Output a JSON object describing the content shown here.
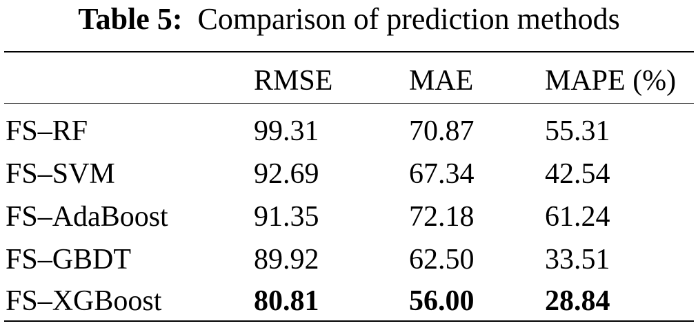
{
  "caption": {
    "label": "Table 5:",
    "text": "Comparison of prediction methods"
  },
  "table": {
    "headers": [
      "",
      "RMSE",
      "MAE",
      "MAPE (%)"
    ],
    "rows": [
      {
        "method": "FS–RF",
        "rmse": "99.31",
        "mae": "70.87",
        "mape": "55.31"
      },
      {
        "method": "FS–SVM",
        "rmse": "92.69",
        "mae": "67.34",
        "mape": "42.54"
      },
      {
        "method": "FS–AdaBoost",
        "rmse": "91.35",
        "mae": "72.18",
        "mape": "61.24"
      },
      {
        "method": "FS–GBDT",
        "rmse": "89.92",
        "mae": "62.50",
        "mape": "33.51"
      },
      {
        "method": "FS–XGBoost",
        "rmse": "80.81",
        "mae": "56.00",
        "mape": "28.84"
      }
    ]
  }
}
